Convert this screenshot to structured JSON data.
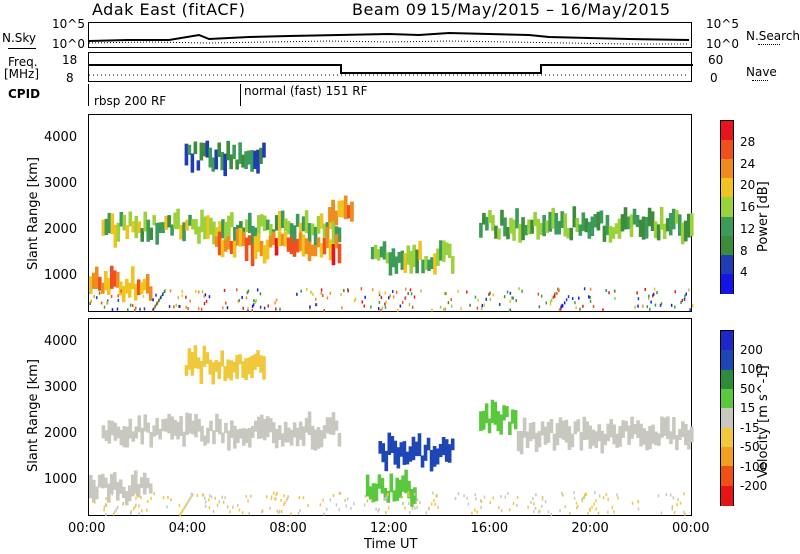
{
  "header": {
    "title": "Adak East (fitACF)",
    "beam": "Beam 09",
    "date_range": "15/May/2015 – 16/May/2015"
  },
  "strip_labels": {
    "nsky": "N.Sky",
    "nsky_ticks": [
      "10^5",
      "10^0"
    ],
    "nsearch": "N.Search",
    "nsearch_ticks": [
      "10^5",
      "10^0"
    ],
    "freq_top": "Freq.",
    "freq_unit": "[MHz]",
    "freq_ticks": [
      "18",
      "8"
    ],
    "nave": "Nave",
    "nave_ticks": [
      "60",
      "0"
    ],
    "cpid": "CPID",
    "cpid_mode1": "rbsp 200 RF",
    "cpid_mode2": "normal (fast) 151 RF"
  },
  "power_panel": {
    "ylabel": "Slant Range [km]",
    "yticks": [
      "4000",
      "3000",
      "2000",
      "1000"
    ],
    "colorbar_label": "Power [dB]",
    "colorbar_ticks": [
      "28",
      "24",
      "20",
      "16",
      "12",
      "8",
      "4"
    ],
    "colors": [
      "#e8141b",
      "#f0501e",
      "#f08c1e",
      "#f0c41e",
      "#9bd23c",
      "#3c9b5a",
      "#3c8c3c",
      "#1e3cb4",
      "#1414e6"
    ]
  },
  "velocity_panel": {
    "ylabel": "Slant Range [km]",
    "yticks": [
      "4000",
      "3000",
      "2000",
      "1000"
    ],
    "colorbar_label": "Velocity [m s^-1]",
    "colorbar_ticks": [
      "200",
      "100",
      "50",
      "15",
      "-15",
      "-50",
      "-100",
      "-200"
    ],
    "colors": [
      "#1e28c8",
      "#1e46b4",
      "#2d8c3c",
      "#5ac83c",
      "#c8c8c0",
      "#f0c83c",
      "#f0a01e",
      "#f05014",
      "#e61414"
    ]
  },
  "xaxis": {
    "label": "Time UT",
    "ticks": [
      "00:00",
      "04:00",
      "08:00",
      "12:00",
      "16:00",
      "20:00",
      "00:00"
    ]
  },
  "chart_data": [
    {
      "type": "heatmap",
      "title": "Adak East (fitACF) Beam 09 15/May/2015 – 16/May/2015",
      "xlabel": "Time UT",
      "ylabel": "Slant Range [km]",
      "xlim": [
        "00:00",
        "24:00"
      ],
      "ylim": [
        200,
        4500
      ],
      "colorbar": {
        "label": "Power [dB]",
        "range": [
          0,
          30
        ]
      },
      "features": [
        {
          "t_start": 0.0,
          "t_end": 2.5,
          "range_km": 800,
          "power_db": 22
        },
        {
          "t_start": 0.5,
          "t_end": 10.0,
          "range_km": 2050,
          "power_db": 14
        },
        {
          "t_start": 5.0,
          "t_end": 10.0,
          "range_km": 1650,
          "power_db": 24
        },
        {
          "t_start": 9.5,
          "t_end": 10.5,
          "range_km": 2300,
          "power_db": 20
        },
        {
          "t_start": 3.8,
          "t_end": 7.0,
          "range_km": 3600,
          "power_db": 8
        },
        {
          "t_start": 11.2,
          "t_end": 14.5,
          "range_km": 1400,
          "power_db": 14
        },
        {
          "t_start": 15.5,
          "t_end": 24.0,
          "range_km": 2100,
          "power_db": 12
        }
      ]
    },
    {
      "type": "heatmap",
      "title": "",
      "xlabel": "Time UT",
      "ylabel": "Slant Range [km]",
      "xlim": [
        "00:00",
        "24:00"
      ],
      "ylim": [
        200,
        4500
      ],
      "colorbar": {
        "label": "Velocity [m s^-1]",
        "range": [
          -200,
          200
        ]
      },
      "features": [
        {
          "t_start": 0.0,
          "t_end": 2.5,
          "range_km": 800,
          "velocity": 0
        },
        {
          "t_start": 0.5,
          "t_end": 10.0,
          "range_km": 2050,
          "velocity": 0
        },
        {
          "t_start": 3.8,
          "t_end": 7.0,
          "range_km": 3500,
          "velocity": -50
        },
        {
          "t_start": 11.5,
          "t_end": 14.5,
          "range_km": 1600,
          "velocity": 150
        },
        {
          "t_start": 11.0,
          "t_end": 13.0,
          "range_km": 800,
          "velocity": 40
        },
        {
          "t_start": 15.5,
          "t_end": 17.0,
          "range_km": 2300,
          "velocity": 40
        },
        {
          "t_start": 17.0,
          "t_end": 24.0,
          "range_km": 2000,
          "velocity": 0
        }
      ]
    }
  ]
}
